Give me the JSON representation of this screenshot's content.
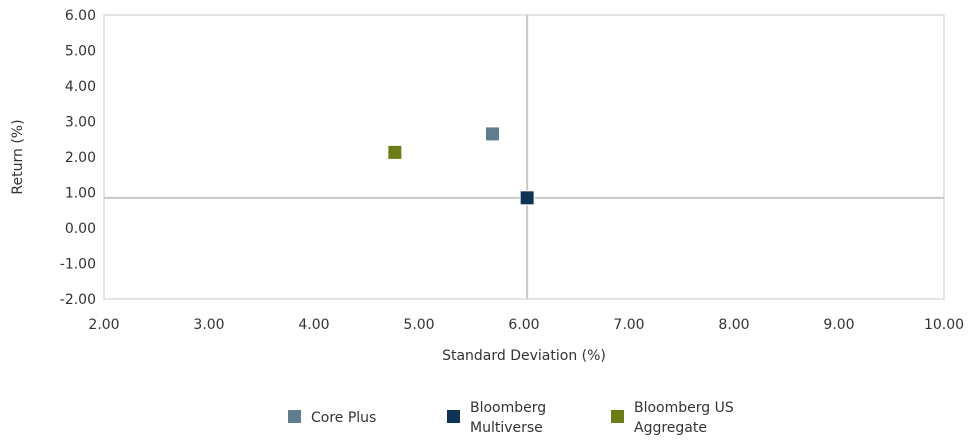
{
  "chart_data": {
    "type": "scatter",
    "xlabel": "Standard Deviation (%)",
    "ylabel": "Return (%)",
    "xlim": [
      2.0,
      10.0
    ],
    "ylim": [
      -2.0,
      6.0
    ],
    "x_ticks": [
      "2.00",
      "3.00",
      "4.00",
      "5.00",
      "6.00",
      "7.00",
      "8.00",
      "9.00",
      "10.00"
    ],
    "y_ticks": [
      "-2.00",
      "-1.00",
      "0.00",
      "1.00",
      "2.00",
      "3.00",
      "4.00",
      "5.00",
      "6.00"
    ],
    "reference_lines": {
      "x": 6.03,
      "y": 0.85
    },
    "grid": false,
    "legend_position": "bottom",
    "series": [
      {
        "name": "Core Plus",
        "x": 5.7,
        "y": 2.65,
        "color": "#5f7d8f",
        "legend_lines": [
          "Core Plus"
        ]
      },
      {
        "name": "Bloomberg Multiverse",
        "x": 6.03,
        "y": 0.85,
        "color": "#0e3354",
        "legend_lines": [
          "Bloomberg",
          "Multiverse"
        ]
      },
      {
        "name": "Bloomberg US Aggregate",
        "x": 4.77,
        "y": 2.13,
        "color": "#6b7d16",
        "legend_lines": [
          "Bloomberg US",
          "Aggregate"
        ]
      }
    ]
  }
}
